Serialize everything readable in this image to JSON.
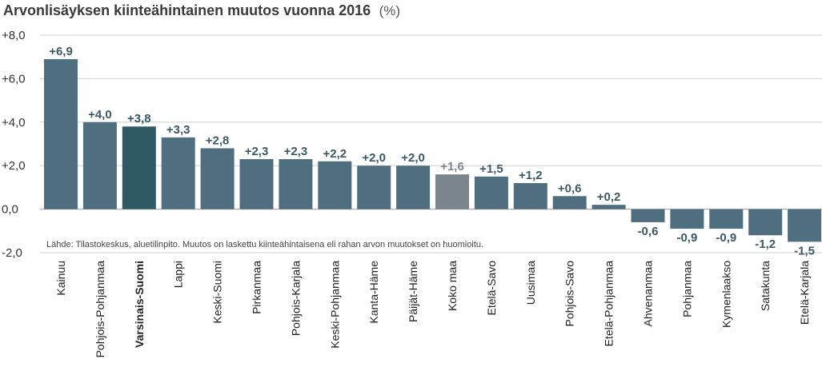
{
  "chart_data": {
    "type": "bar",
    "title": "Arvonlisäyksen kiinteähintainen muutos vuonna 2016",
    "title_unit": "(%)",
    "xlabel": "",
    "ylabel": "",
    "ylim": [
      -2.0,
      8.0
    ],
    "yticks": [
      -2.0,
      0.0,
      2.0,
      4.0,
      6.0,
      8.0
    ],
    "ytick_labels": [
      "-2,0",
      "0,0",
      "+2,0",
      "+4,0",
      "+6,0",
      "+8,0"
    ],
    "grid": true,
    "categories": [
      "Kainuu",
      "Pohjois-Pohjanmaa",
      "Varsinais-Suomi",
      "Lappi",
      "Keski-Suomi",
      "Pirkanmaa",
      "Pohjois-Karjala",
      "Keski-Pohjanmaa",
      "Kanta-Häme",
      "Päijät-Häme",
      "Koko maa",
      "Etelä-Savo",
      "Uusimaa",
      "Pohjois-Savo",
      "Etelä-Pohjanmaa",
      "Ahvenanmaa",
      "Pohjanmaa",
      "Kymenlaakso",
      "Satakunta",
      "Etelä-Karjala"
    ],
    "values": [
      6.9,
      4.0,
      3.8,
      3.3,
      2.8,
      2.3,
      2.3,
      2.2,
      2.0,
      2.0,
      1.6,
      1.5,
      1.2,
      0.6,
      0.2,
      -0.6,
      -0.9,
      -0.9,
      -1.2,
      -1.5
    ],
    "value_labels": [
      "+6,9",
      "+4,0",
      "+3,8",
      "+3,3",
      "+2,8",
      "+2,3",
      "+2,3",
      "+2,2",
      "+2,0",
      "+2,0",
      "+1,6",
      "+1,5",
      "+1,2",
      "+0,6",
      "+0,2",
      "-0,6",
      "-0,9",
      "-0,9",
      "-1,2",
      "-1,5"
    ],
    "highlight": {
      "category": "Varsinais-Suomi",
      "color": "#2f5a64"
    },
    "reference": {
      "category": "Koko maa",
      "color": "#7a858c"
    },
    "bar_color": "#4f6f80",
    "label_color": "#3d5866",
    "note": "Lähde: Tilastokeskus, aluetilinpito. Muutos on laskettu kiinteähintaisena eli rahan arvon muutokset on huomioitu."
  }
}
